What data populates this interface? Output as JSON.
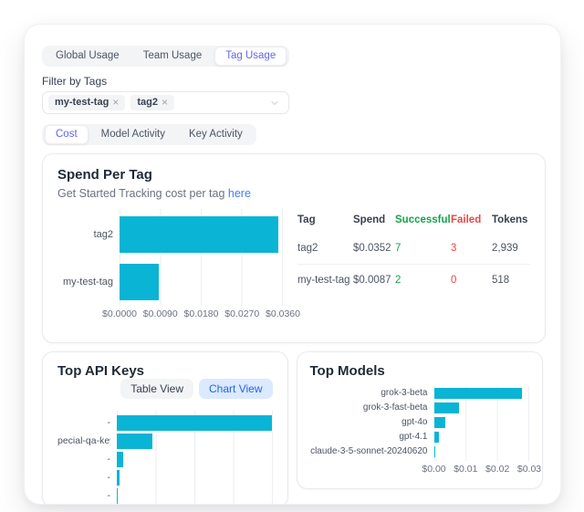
{
  "tabs_primary": {
    "items": [
      {
        "label": "Global Usage",
        "selected": false
      },
      {
        "label": "Team Usage",
        "selected": false
      },
      {
        "label": "Tag Usage",
        "selected": true
      }
    ]
  },
  "filter": {
    "label": "Filter by Tags",
    "chips": [
      {
        "label": "my-test-tag",
        "remove": "×"
      },
      {
        "label": "tag2",
        "remove": "×"
      }
    ]
  },
  "tabs_secondary": {
    "items": [
      {
        "label": "Cost",
        "selected": true
      },
      {
        "label": "Model Activity",
        "selected": false
      },
      {
        "label": "Key Activity",
        "selected": false
      }
    ]
  },
  "spend_card": {
    "title": "Spend Per Tag",
    "subtitle_prefix": "Get Started Tracking cost per tag ",
    "subtitle_link": "here"
  },
  "spend_table": {
    "headers": [
      "Tag",
      "Spend",
      "Successful",
      "Failed",
      "Tokens"
    ],
    "rows": [
      {
        "tag": "tag2",
        "spend": "$0.0352",
        "successful": "7",
        "failed": "3",
        "tokens": "2,939"
      },
      {
        "tag": "my-test-tag",
        "spend": "$0.0087",
        "successful": "2",
        "failed": "0",
        "tokens": "518"
      }
    ]
  },
  "top_api_keys": {
    "title": "Top API Keys",
    "buttons": [
      {
        "label": "Table View",
        "selected": false
      },
      {
        "label": "Chart View",
        "selected": true
      }
    ]
  },
  "top_models": {
    "title": "Top Models"
  },
  "colors": {
    "bar": "#0ab4d4",
    "accent_indigo": "#6366f1",
    "link_blue": "#3b82f6",
    "success_green": "#16a34a",
    "failed_red": "#ef4444"
  },
  "chart_data": [
    {
      "id": "spend_per_tag",
      "type": "bar",
      "orientation": "horizontal",
      "title": "Spend Per Tag",
      "categories": [
        "tag2",
        "my-test-tag"
      ],
      "values": [
        0.0352,
        0.0087
      ],
      "xlim": [
        0,
        0.036
      ],
      "ticks": [
        "$0.0000",
        "$0.0090",
        "$0.0180",
        "$0.0270",
        "$0.0360"
      ],
      "grid": true,
      "bar_color": "#0ab4d4"
    },
    {
      "id": "top_api_keys",
      "type": "bar",
      "orientation": "horizontal",
      "title": "Top API Keys",
      "categories": [
        "-",
        "pecial-qa-key",
        "-",
        "-",
        "-"
      ],
      "values": [
        0.0309,
        0.0072,
        0.0013,
        0.0006,
        0.0001
      ],
      "xlim": [
        0,
        0.0309
      ],
      "ticks": [],
      "grid": true,
      "bar_color": "#0ab4d4"
    },
    {
      "id": "top_models",
      "type": "bar",
      "orientation": "horizontal",
      "title": "Top Models",
      "categories": [
        "grok-3-beta",
        "grok-3-fast-beta",
        "gpt-4o",
        "gpt-4.1",
        "claude-3-5-sonnet-20240620"
      ],
      "values": [
        0.028,
        0.008,
        0.0035,
        0.0015,
        0.0004
      ],
      "xlim": [
        0,
        0.03
      ],
      "ticks": [
        "$0.00",
        "$0.01",
        "$0.02",
        "$0.03"
      ],
      "grid": true,
      "bar_color": "#0ab4d4"
    }
  ]
}
